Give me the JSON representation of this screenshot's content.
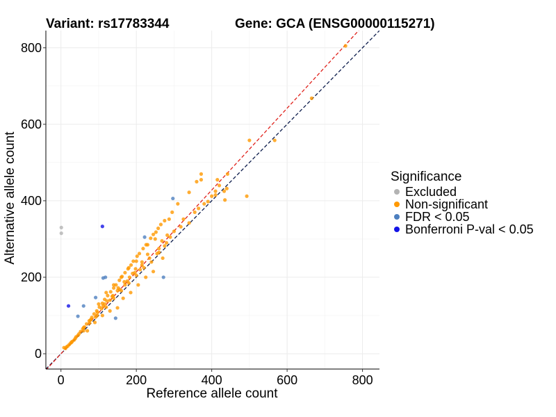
{
  "titles": {
    "variant": "Variant: rs17783344",
    "gene": "Gene: GCA (ENSG00000115271)"
  },
  "legend": {
    "title": "Significance",
    "items": [
      {
        "label": "Excluded",
        "color": "#b3b3b3"
      },
      {
        "label": "Non-significant",
        "color": "#ff9900"
      },
      {
        "label": "FDR < 0.05",
        "color": "#4d7fbf"
      },
      {
        "label": "Bonferroni P-val < 0.05",
        "color": "#1414e6"
      }
    ]
  },
  "chart_data": {
    "type": "scatter",
    "title": "Variant: rs17783344    Gene: GCA (ENSG00000115271)",
    "xlabel": "Reference allele count",
    "ylabel": "Alternative allele count",
    "xlim": [
      -40,
      845
    ],
    "ylim": [
      -40,
      845
    ],
    "xticks": [
      0,
      200,
      400,
      600,
      800
    ],
    "yticks": [
      0,
      200,
      400,
      600,
      800
    ],
    "grid": true,
    "reference_lines": [
      {
        "name": "identity",
        "slope": 1.0,
        "intercept": 0,
        "color": "#0a1a4a",
        "style": "dashed"
      },
      {
        "name": "fit",
        "slope": 1.07,
        "intercept": 0,
        "color": "#e0201a",
        "style": "dashed"
      }
    ],
    "series": [
      {
        "name": "Excluded",
        "color": "#b3b3b3",
        "points": [
          [
            1,
            330
          ],
          [
            1,
            315
          ]
        ]
      },
      {
        "name": "Non-significant",
        "color": "#ff9900",
        "points": [
          [
            755,
            805
          ],
          [
            665,
            668
          ],
          [
            567,
            558
          ],
          [
            500,
            558
          ],
          [
            493,
            412
          ],
          [
            442,
            470
          ],
          [
            440,
            432
          ],
          [
            435,
            402
          ],
          [
            415,
            455
          ],
          [
            433,
            425
          ],
          [
            410,
            415
          ],
          [
            400,
            412
          ],
          [
            372,
            455
          ],
          [
            340,
            422
          ],
          [
            310,
            392
          ],
          [
            295,
            370
          ],
          [
            287,
            352
          ],
          [
            275,
            348
          ],
          [
            265,
            338
          ],
          [
            258,
            328
          ],
          [
            252,
            318
          ],
          [
            245,
            312
          ],
          [
            238,
            302
          ],
          [
            226,
            285
          ],
          [
            218,
            275
          ],
          [
            208,
            262
          ],
          [
            202,
            255
          ],
          [
            192,
            242
          ],
          [
            186,
            232
          ],
          [
            178,
            222
          ],
          [
            170,
            212
          ],
          [
            162,
            202
          ],
          [
            155,
            192
          ],
          [
            146,
            180
          ],
          [
            140,
            172
          ],
          [
            132,
            162
          ],
          [
            124,
            152
          ],
          [
            116,
            142
          ],
          [
            110,
            132
          ],
          [
            102,
            122
          ],
          [
            95,
            112
          ],
          [
            88,
            104
          ],
          [
            82,
            95
          ],
          [
            75,
            86
          ],
          [
            68,
            78
          ],
          [
            60,
            68
          ],
          [
            52,
            58
          ],
          [
            45,
            48
          ],
          [
            38,
            40
          ],
          [
            30,
            32
          ],
          [
            22,
            24
          ],
          [
            15,
            18
          ],
          [
            8,
            16
          ],
          [
            250,
            300
          ],
          [
            230,
            285
          ],
          [
            200,
            242
          ],
          [
            180,
            225
          ],
          [
            160,
            200
          ],
          [
            140,
            180
          ],
          [
            120,
            160
          ],
          [
            100,
            130
          ],
          [
            280,
            290
          ],
          [
            260,
            265
          ],
          [
            240,
            240
          ],
          [
            220,
            225
          ],
          [
            200,
            205
          ],
          [
            180,
            185
          ],
          [
            160,
            165
          ],
          [
            140,
            145
          ],
          [
            120,
            122
          ],
          [
            270,
            250
          ],
          [
            245,
            215
          ],
          [
            225,
            200
          ],
          [
            205,
            180
          ],
          [
            185,
            160
          ],
          [
            165,
            145
          ],
          [
            150,
            120
          ],
          [
            130,
            112
          ],
          [
            110,
            100
          ],
          [
            90,
            82
          ],
          [
            70,
            60
          ],
          [
            260,
            275
          ],
          [
            210,
            220
          ],
          [
            190,
            210
          ],
          [
            170,
            180
          ],
          [
            150,
            165
          ],
          [
            130,
            140
          ],
          [
            112,
            125
          ],
          [
            96,
            100
          ],
          [
            80,
            90
          ],
          [
            60,
            60
          ],
          [
            300,
            320
          ],
          [
            318,
            332
          ],
          [
            325,
            352
          ],
          [
            282,
            310
          ],
          [
            268,
            295
          ],
          [
            230,
            260
          ],
          [
            215,
            240
          ],
          [
            198,
            222
          ],
          [
            182,
            200
          ],
          [
            168,
            188
          ],
          [
            152,
            172
          ],
          [
            138,
            152
          ],
          [
            122,
            138
          ],
          [
            108,
            118
          ],
          [
            92,
            96
          ],
          [
            76,
            80
          ],
          [
            62,
            70
          ],
          [
            48,
            52
          ],
          [
            35,
            36
          ],
          [
            26,
            28
          ],
          [
            18,
            20
          ],
          [
            12,
            14
          ],
          [
            290,
            305
          ],
          [
            275,
            282
          ],
          [
            255,
            262
          ],
          [
            235,
            250
          ],
          [
            215,
            232
          ],
          [
            196,
            212
          ],
          [
            176,
            190
          ],
          [
            156,
            168
          ],
          [
            136,
            150
          ],
          [
            116,
            130
          ],
          [
            97,
            108
          ],
          [
            78,
            88
          ],
          [
            58,
            65
          ],
          [
            40,
            44
          ],
          [
            28,
            30
          ],
          [
            340,
            342
          ],
          [
            355,
            370
          ],
          [
            365,
            380
          ],
          [
            380,
            392
          ],
          [
            390,
            398
          ],
          [
            410,
            425
          ],
          [
            420,
            440
          ],
          [
            372,
            470
          ],
          [
            360,
            450
          ]
        ]
      },
      {
        "name": "FDR < 0.05",
        "color": "#4d7fbf",
        "points": [
          [
            297,
            406
          ],
          [
            222,
            305
          ],
          [
            272,
            200
          ],
          [
            118,
            200
          ],
          [
            112,
            198
          ],
          [
            145,
            93
          ],
          [
            45,
            98
          ],
          [
            92,
            147
          ],
          [
            60,
            125
          ]
        ]
      },
      {
        "name": "Bonferroni P-val < 0.05",
        "color": "#1414e6",
        "points": [
          [
            110,
            333
          ],
          [
            20,
            125
          ]
        ]
      }
    ]
  }
}
